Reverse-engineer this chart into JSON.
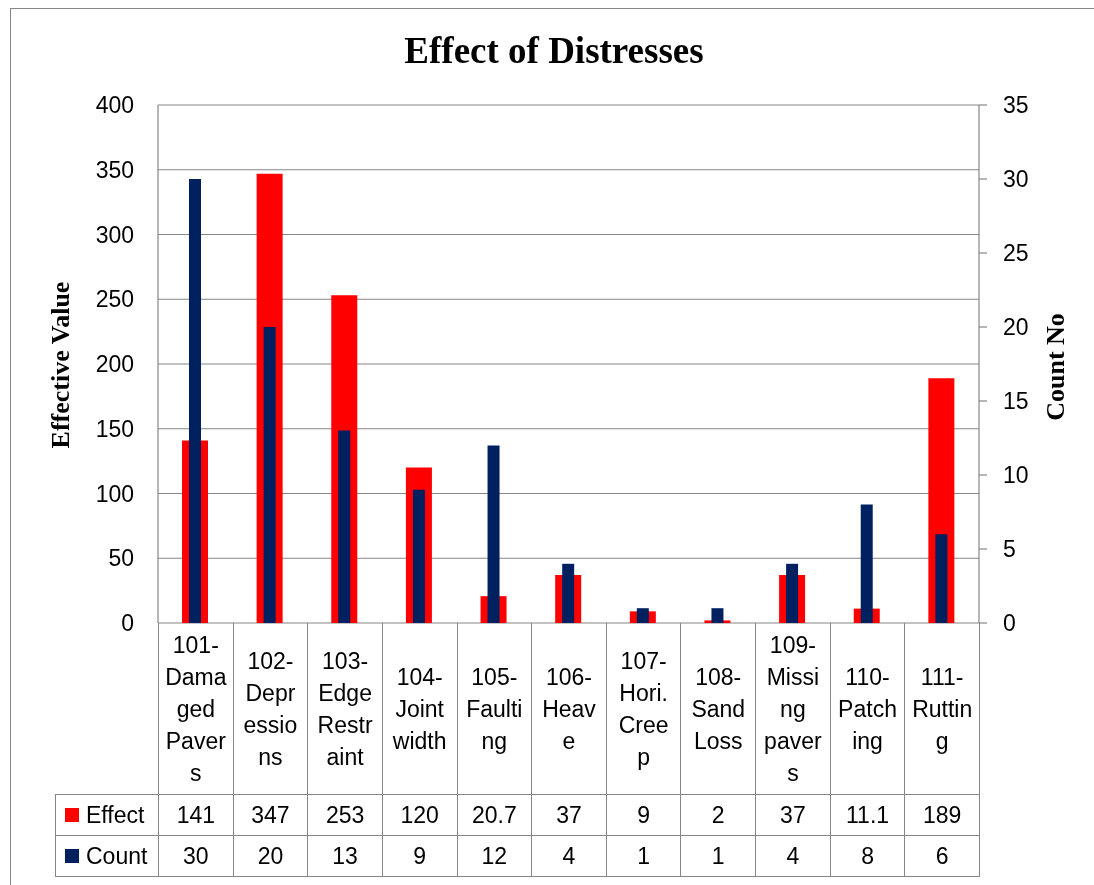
{
  "chart_data": {
    "type": "bar",
    "title": "Effect of Distresses",
    "ylabel": "Effective Value",
    "y2label": "Count No",
    "categories": [
      "101-Damaged Pavers",
      "102-Depressions",
      "103-Edge Restraint",
      "104-Joint width",
      "105-Faulting",
      "106-Heave",
      "107-Hori. Creep",
      "108-Sand Loss",
      "109-Missing pavers",
      "110-Patching",
      "111-Rutting"
    ],
    "series": [
      {
        "name": "Effect",
        "color": "#ff0000",
        "values": [
          141,
          347,
          253,
          120,
          20.7,
          37,
          9,
          2,
          37,
          11.1,
          189
        ]
      },
      {
        "name": "Count",
        "color": "#002060",
        "axis": "y2",
        "values": [
          30,
          20,
          13,
          9,
          12,
          4,
          1,
          1,
          4,
          8,
          6
        ]
      }
    ],
    "ylim": [
      0,
      400
    ],
    "yticks": [
      0,
      50,
      100,
      150,
      200,
      250,
      300,
      350,
      400
    ],
    "y2lim": [
      0,
      35
    ],
    "y2ticks": [
      0,
      5,
      10,
      15,
      20,
      25,
      30,
      35
    ],
    "grid": "y",
    "legend": "bottom",
    "data_labels": true
  }
}
